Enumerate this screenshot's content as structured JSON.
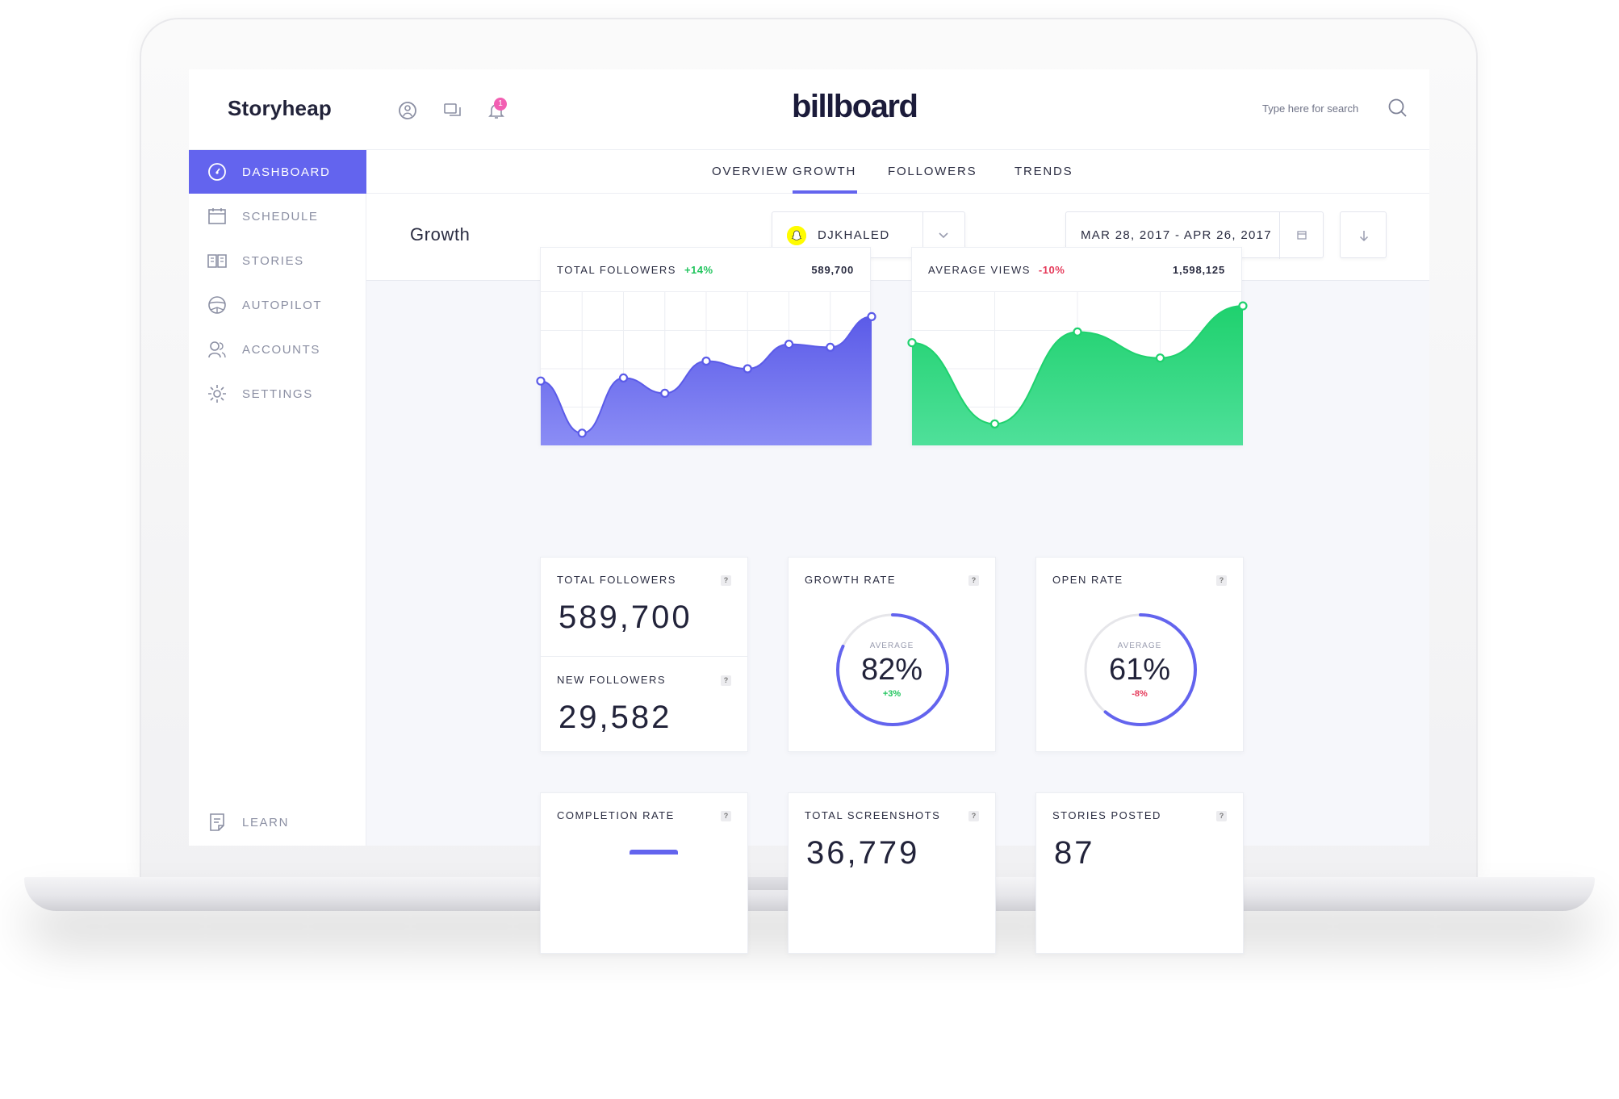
{
  "app": {
    "name": "Storyheap",
    "brand": "billboard",
    "notification_count": "1"
  },
  "search": {
    "placeholder": "Type here for search"
  },
  "sidebar": {
    "items": [
      {
        "label": "DASHBOARD",
        "icon": "dashboard-gauge-icon",
        "active": true
      },
      {
        "label": "SCHEDULE",
        "icon": "calendar-icon"
      },
      {
        "label": "STORIES",
        "icon": "book-icon"
      },
      {
        "label": "AUTOPILOT",
        "icon": "steering-wheel-icon"
      },
      {
        "label": "ACCOUNTS",
        "icon": "users-icon"
      },
      {
        "label": "SETTINGS",
        "icon": "gear-icon"
      }
    ],
    "footer": {
      "label": "LEARN",
      "icon": "document-icon"
    }
  },
  "tabs": [
    {
      "label": "OVERVIEW"
    },
    {
      "label": "GROWTH",
      "active": true
    },
    {
      "label": "FOLLOWERS"
    },
    {
      "label": "TRENDS"
    }
  ],
  "toolbar": {
    "title": "Growth",
    "account": "DJKHALED",
    "date_range": "MAR 28, 2017 - APR 26, 2017"
  },
  "colors": {
    "accent": "#6364ee",
    "green": "#22c55e",
    "red": "#e53a5a",
    "snapchat_yellow": "#fffc00"
  },
  "charts": {
    "followers": {
      "title": "TOTAL FOLLOWERS",
      "change": "+14%",
      "total": "589,700"
    },
    "views": {
      "title": "AVERAGE VIEWS",
      "change": "-10%",
      "total": "1,598,125"
    }
  },
  "chart_data": [
    {
      "type": "area",
      "title": "TOTAL FOLLOWERS",
      "series": [
        {
          "values": [
            0.42,
            0.08,
            0.44,
            0.34,
            0.55,
            0.5,
            0.66,
            0.64,
            0.84
          ]
        }
      ],
      "grid": true
    },
    {
      "type": "area",
      "title": "AVERAGE VIEWS",
      "series": [
        {
          "values": [
            0.67,
            0.14,
            0.74,
            0.57,
            0.91
          ]
        }
      ],
      "grid": true
    }
  ],
  "stats": {
    "total_followers": {
      "label": "TOTAL FOLLOWERS",
      "value": "589,700"
    },
    "new_followers": {
      "label": "NEW FOLLOWERS",
      "value": "29,582"
    },
    "growth_rate": {
      "label": "GROWTH RATE",
      "avg_label": "AVERAGE",
      "value": "82%",
      "delta": "+3%",
      "progress": 0.82
    },
    "open_rate": {
      "label": "OPEN RATE",
      "avg_label": "AVERAGE",
      "value": "61%",
      "delta": "-8%",
      "progress": 0.61
    },
    "completion_rate": {
      "label": "COMPLETION RATE"
    },
    "total_screenshots": {
      "label": "TOTAL SCREENSHOTS",
      "value": "36,779"
    },
    "stories_posted": {
      "label": "STORIES POSTED",
      "value": "87"
    },
    "help_mark": "?"
  }
}
